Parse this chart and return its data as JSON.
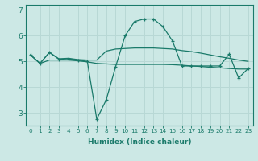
{
  "xlabel": "Humidex (Indice chaleur)",
  "x": [
    0,
    1,
    2,
    3,
    4,
    5,
    6,
    7,
    8,
    9,
    10,
    11,
    12,
    13,
    14,
    15,
    16,
    17,
    18,
    19,
    20,
    21,
    22,
    23
  ],
  "line1": [
    5.25,
    4.92,
    5.35,
    5.08,
    5.1,
    5.05,
    5.0,
    2.75,
    3.5,
    4.8,
    6.0,
    6.55,
    6.65,
    6.65,
    6.35,
    5.8,
    4.82,
    4.82,
    4.82,
    4.82,
    4.82,
    5.28,
    4.35,
    4.72
  ],
  "line2": [
    5.25,
    4.92,
    5.35,
    5.1,
    5.12,
    5.07,
    5.05,
    5.05,
    5.4,
    5.48,
    5.5,
    5.52,
    5.52,
    5.52,
    5.5,
    5.48,
    5.42,
    5.38,
    5.32,
    5.25,
    5.18,
    5.12,
    5.05,
    5.0
  ],
  "line3": [
    5.25,
    4.92,
    5.05,
    5.05,
    5.05,
    5.02,
    4.98,
    4.92,
    4.9,
    4.88,
    4.88,
    4.88,
    4.88,
    4.88,
    4.88,
    4.87,
    4.85,
    4.82,
    4.8,
    4.77,
    4.75,
    4.72,
    4.7,
    4.7
  ],
  "line_color": "#1a7a6a",
  "bg_color": "#cce8e5",
  "grid_color": "#b8d8d5",
  "ylim": [
    2.5,
    7.2
  ],
  "yticks": [
    3,
    4,
    5,
    6,
    7
  ],
  "xlim": [
    -0.5,
    23.5
  ]
}
